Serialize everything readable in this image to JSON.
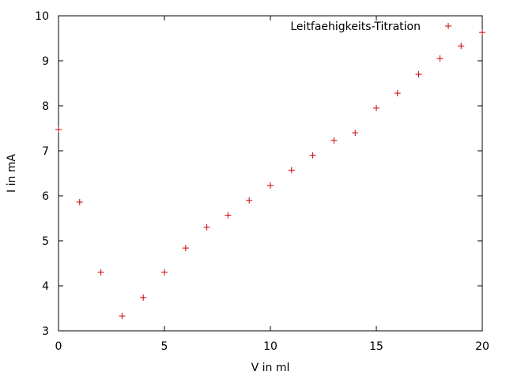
{
  "chart_data": {
    "type": "scatter",
    "title": "",
    "xlabel": "V in ml",
    "ylabel": "I in mA",
    "xlim": [
      0,
      20
    ],
    "ylim": [
      3,
      10
    ],
    "xticks": [
      0,
      5,
      10,
      15,
      20
    ],
    "yticks": [
      3,
      4,
      5,
      6,
      7,
      8,
      9,
      10
    ],
    "grid": false,
    "legend_position": "top-right",
    "series": [
      {
        "name": "Leitfaehigkeits-Titration",
        "color": "#cc0000",
        "marker": "plus",
        "x": [
          0,
          1,
          2,
          3,
          4,
          5,
          6,
          7,
          8,
          9,
          10,
          11,
          12,
          13,
          14,
          15,
          16,
          17,
          18,
          19,
          20
        ],
        "y": [
          7.47,
          5.86,
          4.3,
          3.33,
          3.74,
          4.3,
          4.84,
          5.3,
          5.57,
          5.9,
          6.23,
          6.57,
          6.9,
          7.23,
          7.4,
          7.95,
          8.28,
          8.7,
          9.05,
          9.33,
          9.63
        ]
      }
    ]
  }
}
